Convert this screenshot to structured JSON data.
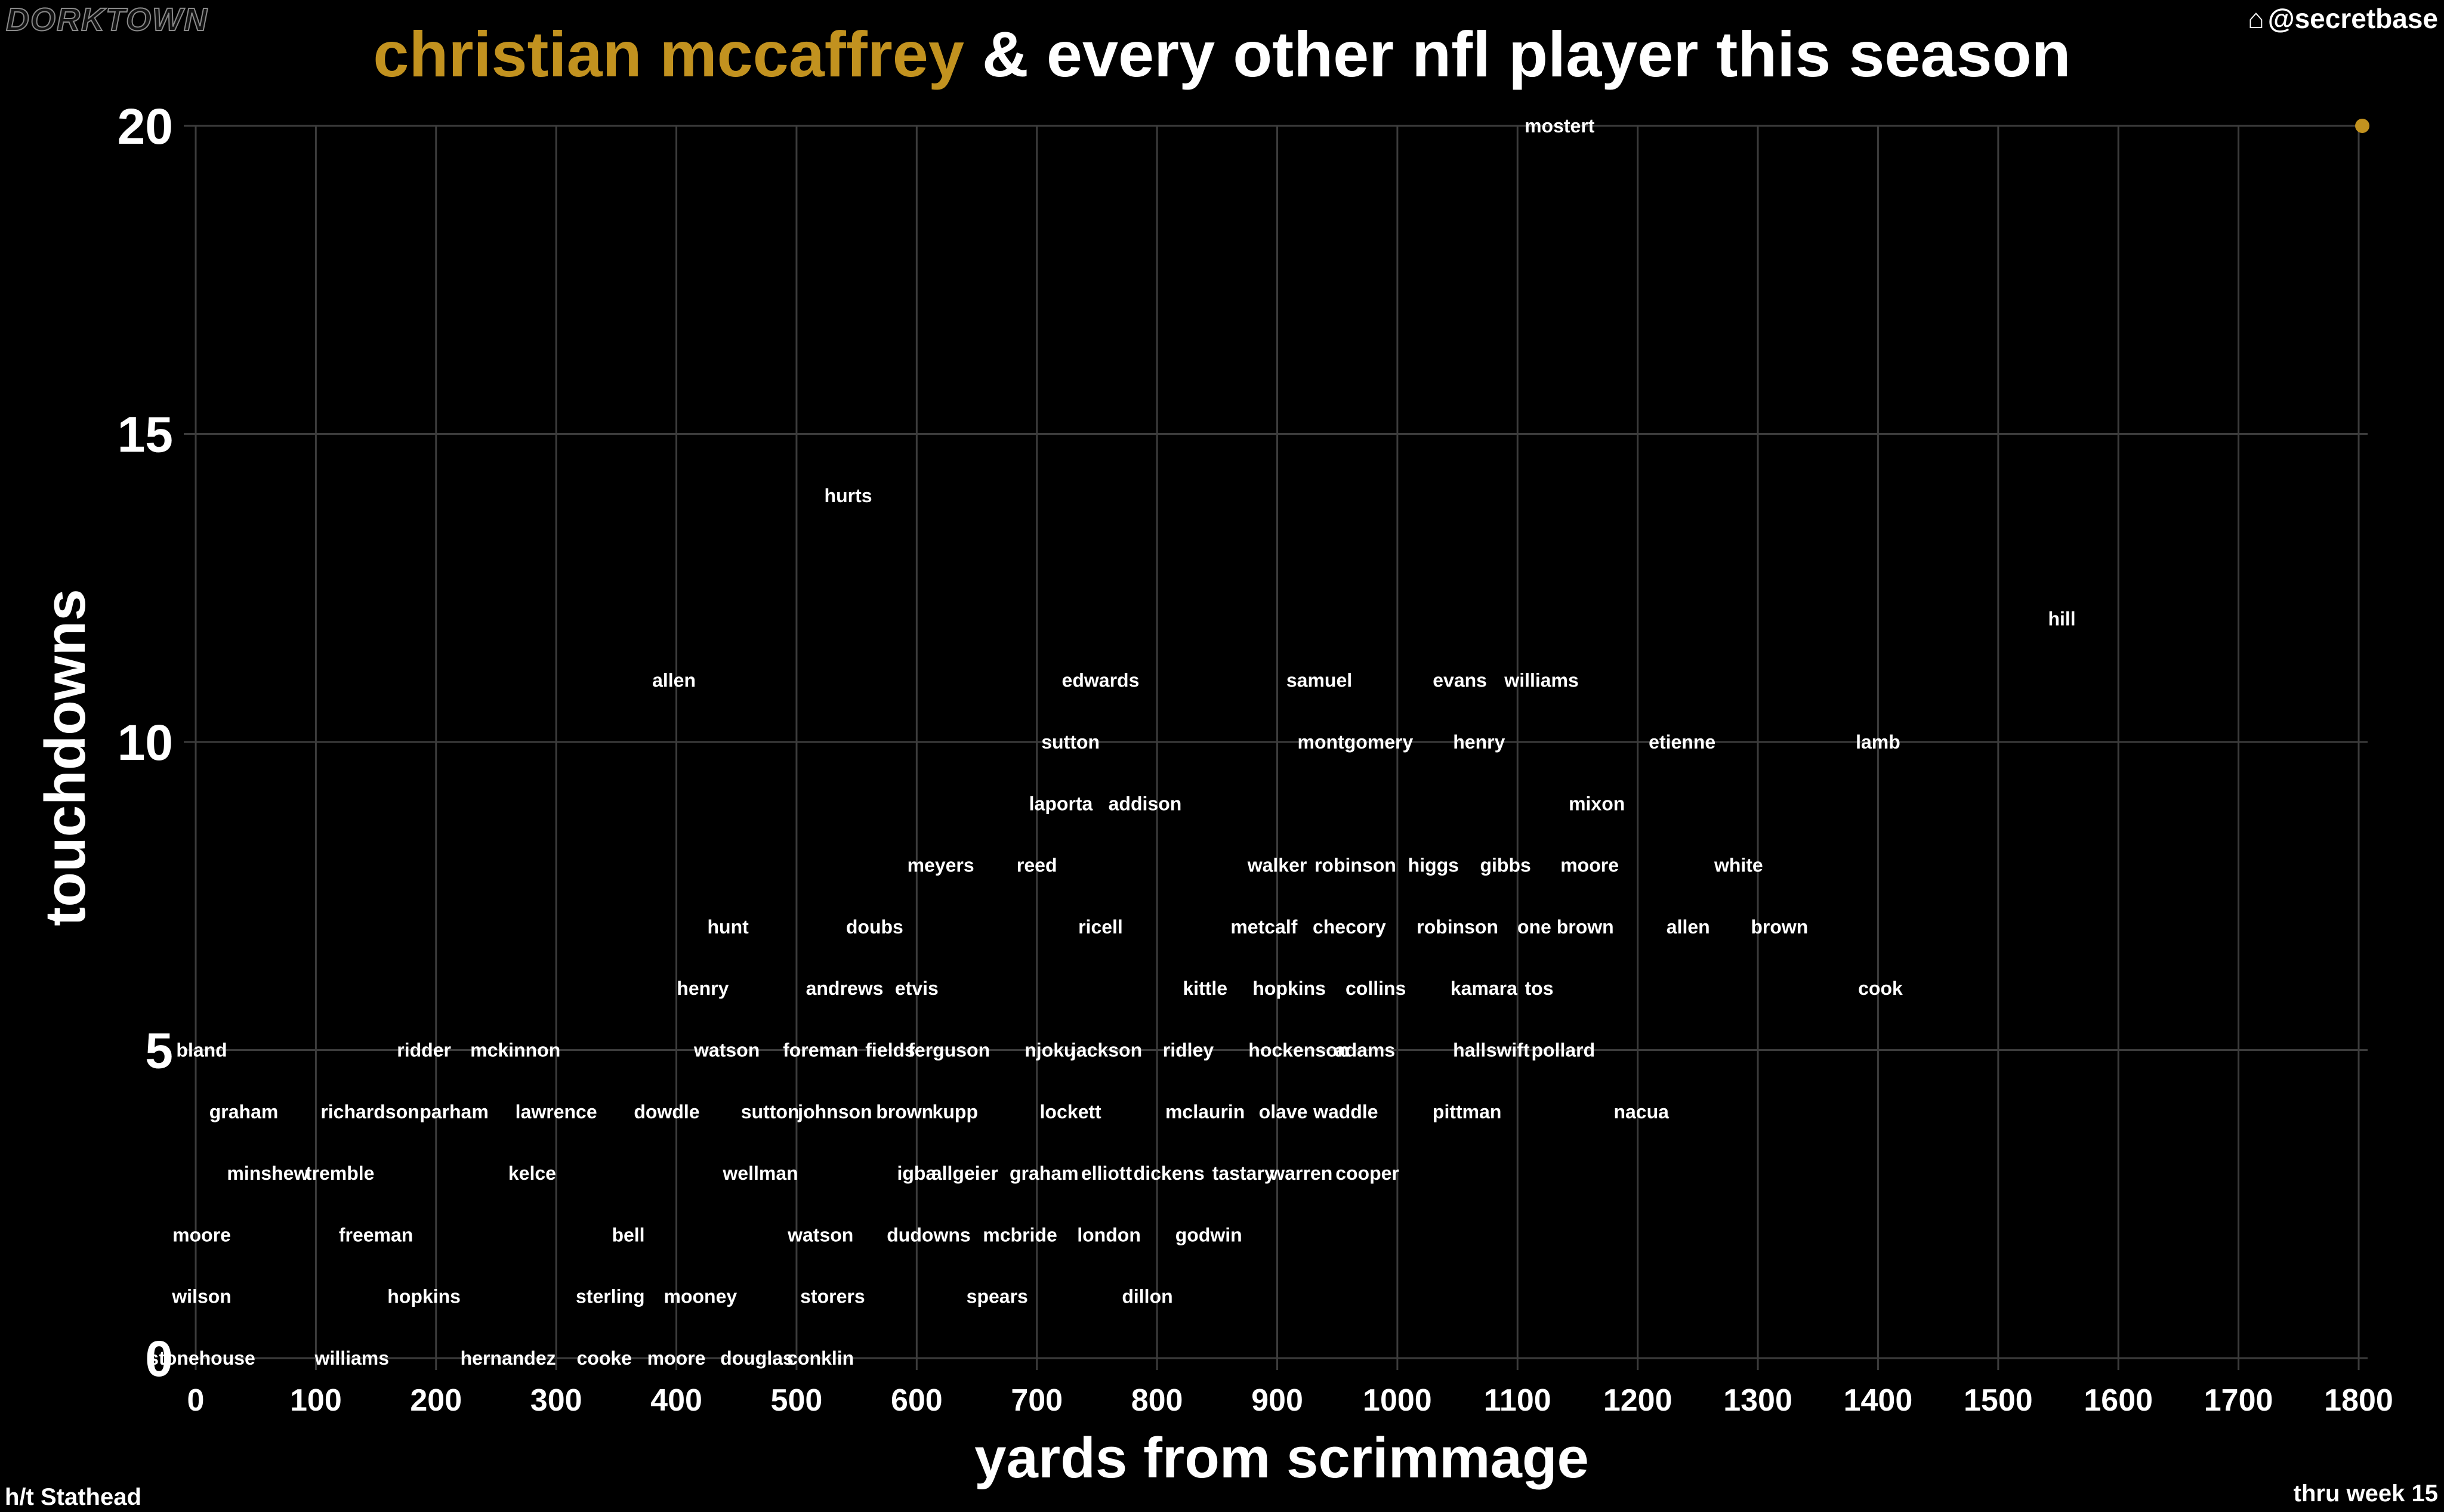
{
  "brand": "DORKTOWN",
  "handle": "@secretbase",
  "title": {
    "highlight": "christian mccaffrey",
    "rest": " & every other nfl player this season"
  },
  "credit": "h/t Stathead",
  "through": "thru week 15",
  "colors": {
    "background": "#000000",
    "highlight": "#c2921f",
    "grid": "#3c3c3c",
    "text": "#ffffff"
  },
  "chart_data": {
    "type": "scatter",
    "xlabel": "yards from scrimmage",
    "ylabel": "touchdowns",
    "xlim": [
      0,
      1800
    ],
    "ylim": [
      0,
      20
    ],
    "xticks": [
      0,
      100,
      200,
      300,
      400,
      500,
      600,
      700,
      800,
      900,
      1000,
      1100,
      1200,
      1300,
      1400,
      1500,
      1600,
      1700,
      1800
    ],
    "yticks": [
      0,
      5,
      10,
      15,
      20
    ],
    "grid": true,
    "highlight_point": {
      "name": "christian mccaffrey",
      "x": 1803,
      "y": 20
    },
    "points": [
      {
        "label": "mostert",
        "x": 1135,
        "y": 20
      },
      {
        "label": "hurts",
        "x": 543,
        "y": 14
      },
      {
        "label": "hill",
        "x": 1553,
        "y": 12
      },
      {
        "label": "allen",
        "x": 398,
        "y": 11
      },
      {
        "label": "edwards",
        "x": 753,
        "y": 11
      },
      {
        "label": "samuel",
        "x": 935,
        "y": 11
      },
      {
        "label": "evans",
        "x": 1052,
        "y": 11
      },
      {
        "label": "williams",
        "x": 1120,
        "y": 11
      },
      {
        "label": "sutton",
        "x": 728,
        "y": 10
      },
      {
        "label": "montgomery",
        "x": 965,
        "y": 10
      },
      {
        "label": "henry",
        "x": 1068,
        "y": 10
      },
      {
        "label": "etienne",
        "x": 1237,
        "y": 10
      },
      {
        "label": "lamb",
        "x": 1400,
        "y": 10
      },
      {
        "label": "laporta",
        "x": 720,
        "y": 9
      },
      {
        "label": "addison",
        "x": 790,
        "y": 9
      },
      {
        "label": "mixon",
        "x": 1166,
        "y": 9
      },
      {
        "label": "meyers",
        "x": 620,
        "y": 8
      },
      {
        "label": "reed",
        "x": 700,
        "y": 8
      },
      {
        "label": "walker",
        "x": 900,
        "y": 8
      },
      {
        "label": "robinson",
        "x": 965,
        "y": 8
      },
      {
        "label": "higgs",
        "x": 1030,
        "y": 8
      },
      {
        "label": "gibbs",
        "x": 1090,
        "y": 8
      },
      {
        "label": "moore",
        "x": 1160,
        "y": 8
      },
      {
        "label": "white",
        "x": 1284,
        "y": 8
      },
      {
        "label": "hunt",
        "x": 443,
        "y": 7
      },
      {
        "label": "doubs",
        "x": 565,
        "y": 7
      },
      {
        "label": "ricell",
        "x": 753,
        "y": 7
      },
      {
        "label": "metcalf",
        "x": 889,
        "y": 7
      },
      {
        "label": "checory",
        "x": 960,
        "y": 7
      },
      {
        "label": "robinson",
        "x": 1050,
        "y": 7
      },
      {
        "label": "one brown",
        "x": 1140,
        "y": 7
      },
      {
        "label": "allen",
        "x": 1242,
        "y": 7
      },
      {
        "label": "brown",
        "x": 1318,
        "y": 7
      },
      {
        "label": "henry",
        "x": 422,
        "y": 6
      },
      {
        "label": "andrews",
        "x": 540,
        "y": 6
      },
      {
        "label": "etvis",
        "x": 600,
        "y": 6
      },
      {
        "label": "kittle",
        "x": 840,
        "y": 6
      },
      {
        "label": "hopkins",
        "x": 910,
        "y": 6
      },
      {
        "label": "collins",
        "x": 982,
        "y": 6
      },
      {
        "label": "kamara",
        "x": 1072,
        "y": 6
      },
      {
        "label": "tos",
        "x": 1118,
        "y": 6
      },
      {
        "label": "cook",
        "x": 1402,
        "y": 6
      },
      {
        "label": "bland",
        "x": 5,
        "y": 5
      },
      {
        "label": "ridder",
        "x": 190,
        "y": 5
      },
      {
        "label": "mckinnon",
        "x": 266,
        "y": 5
      },
      {
        "label": "watson",
        "x": 442,
        "y": 5
      },
      {
        "label": "foreman",
        "x": 520,
        "y": 5
      },
      {
        "label": "fields",
        "x": 578,
        "y": 5
      },
      {
        "label": "ferguson",
        "x": 627,
        "y": 5
      },
      {
        "label": "njoku",
        "x": 711,
        "y": 5
      },
      {
        "label": "jackson",
        "x": 758,
        "y": 5
      },
      {
        "label": "ridley",
        "x": 826,
        "y": 5
      },
      {
        "label": "hockenson",
        "x": 918,
        "y": 5
      },
      {
        "label": "adams",
        "x": 973,
        "y": 5
      },
      {
        "label": "hall",
        "x": 1060,
        "y": 5
      },
      {
        "label": "swift",
        "x": 1092,
        "y": 5
      },
      {
        "label": "pollard",
        "x": 1138,
        "y": 5
      },
      {
        "label": "graham",
        "x": 40,
        "y": 4
      },
      {
        "label": "richardson",
        "x": 145,
        "y": 4
      },
      {
        "label": "parham",
        "x": 215,
        "y": 4
      },
      {
        "label": "lawrence",
        "x": 300,
        "y": 4
      },
      {
        "label": "dowdle",
        "x": 392,
        "y": 4
      },
      {
        "label": "sutton",
        "x": 478,
        "y": 4
      },
      {
        "label": "johnson",
        "x": 532,
        "y": 4
      },
      {
        "label": "brown",
        "x": 590,
        "y": 4
      },
      {
        "label": "kupp",
        "x": 632,
        "y": 4
      },
      {
        "label": "lockett",
        "x": 728,
        "y": 4
      },
      {
        "label": "mclaurin",
        "x": 840,
        "y": 4
      },
      {
        "label": "olave",
        "x": 905,
        "y": 4
      },
      {
        "label": "waddle",
        "x": 957,
        "y": 4
      },
      {
        "label": "pittman",
        "x": 1058,
        "y": 4
      },
      {
        "label": "nacua",
        "x": 1203,
        "y": 4
      },
      {
        "label": "minshew",
        "x": 60,
        "y": 3
      },
      {
        "label": "tremble",
        "x": 120,
        "y": 3
      },
      {
        "label": "kelce",
        "x": 280,
        "y": 3
      },
      {
        "label": "wellman",
        "x": 470,
        "y": 3
      },
      {
        "label": "igba",
        "x": 600,
        "y": 3
      },
      {
        "label": "allgeier",
        "x": 640,
        "y": 3
      },
      {
        "label": "graham",
        "x": 706,
        "y": 3
      },
      {
        "label": "elliott",
        "x": 758,
        "y": 3
      },
      {
        "label": "dickens",
        "x": 810,
        "y": 3
      },
      {
        "label": "tastary",
        "x": 872,
        "y": 3
      },
      {
        "label": "warren",
        "x": 920,
        "y": 3
      },
      {
        "label": "cooper",
        "x": 975,
        "y": 3
      },
      {
        "label": "moore",
        "x": 5,
        "y": 2
      },
      {
        "label": "freeman",
        "x": 150,
        "y": 2
      },
      {
        "label": "bell",
        "x": 360,
        "y": 2
      },
      {
        "label": "watson",
        "x": 520,
        "y": 2
      },
      {
        "label": "dudowns",
        "x": 610,
        "y": 2
      },
      {
        "label": "mcbride",
        "x": 686,
        "y": 2
      },
      {
        "label": "london",
        "x": 760,
        "y": 2
      },
      {
        "label": "godwin",
        "x": 843,
        "y": 2
      },
      {
        "label": "wilson",
        "x": 5,
        "y": 1
      },
      {
        "label": "hopkins",
        "x": 190,
        "y": 1
      },
      {
        "label": "sterling",
        "x": 345,
        "y": 1
      },
      {
        "label": "mooney",
        "x": 420,
        "y": 1
      },
      {
        "label": "storers",
        "x": 530,
        "y": 1
      },
      {
        "label": "spears",
        "x": 667,
        "y": 1
      },
      {
        "label": "dillon",
        "x": 792,
        "y": 1
      },
      {
        "label": "stonehouse",
        "x": 5,
        "y": 0
      },
      {
        "label": "williams",
        "x": 130,
        "y": 0
      },
      {
        "label": "hernandez",
        "x": 260,
        "y": 0
      },
      {
        "label": "cooke",
        "x": 340,
        "y": 0
      },
      {
        "label": "moore",
        "x": 400,
        "y": 0
      },
      {
        "label": "douglas",
        "x": 467,
        "y": 0
      },
      {
        "label": "conklin",
        "x": 520,
        "y": 0
      }
    ]
  }
}
